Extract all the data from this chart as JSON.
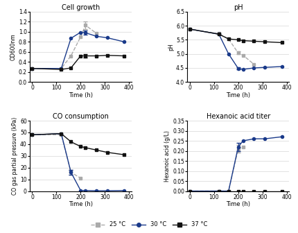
{
  "cell_growth": {
    "title": "Cell growth",
    "xlabel": "Time (h)",
    "ylabel": "OD600nm",
    "ylim": [
      0,
      1.4
    ],
    "yticks": [
      0,
      0.2,
      0.4,
      0.6,
      0.8,
      1.0,
      1.2,
      1.4
    ],
    "series": {
      "25C": {
        "x": [
          0,
          120,
          160,
          200,
          220,
          265,
          310,
          380
        ],
        "y": [
          0.27,
          0.27,
          0.52,
          0.9,
          1.13,
          0.97,
          null,
          null
        ],
        "yerr": [
          null,
          null,
          null,
          null,
          0.08,
          null,
          null,
          null
        ],
        "color": "#aaaaaa",
        "marker": "s",
        "linestyle": "--"
      },
      "30C": {
        "x": [
          0,
          120,
          160,
          200,
          220,
          265,
          310,
          380
        ],
        "y": [
          0.27,
          0.27,
          0.87,
          0.99,
          0.98,
          0.91,
          0.88,
          0.8
        ],
        "yerr": [
          null,
          null,
          null,
          null,
          0.04,
          null,
          null,
          null
        ],
        "color": "#1a3a8a",
        "marker": "o",
        "linestyle": "-"
      },
      "37C": {
        "x": [
          0,
          120,
          160,
          200,
          220,
          265,
          310,
          380
        ],
        "y": [
          0.27,
          0.25,
          0.28,
          0.52,
          0.52,
          0.52,
          0.53,
          0.52
        ],
        "yerr": [
          null,
          null,
          null,
          null,
          0.03,
          null,
          null,
          null
        ],
        "color": "#111111",
        "marker": "s",
        "linestyle": "-"
      }
    }
  },
  "ph": {
    "title": "pH",
    "xlabel": "Time (h)",
    "ylabel": "pH",
    "ylim": [
      4.0,
      6.5
    ],
    "yticks": [
      4.0,
      4.5,
      5.0,
      5.5,
      6.0,
      6.5
    ],
    "series": {
      "25C": {
        "x": [
          0,
          120,
          160,
          200,
          220,
          265,
          310,
          380
        ],
        "y": [
          5.88,
          5.72,
          5.53,
          5.03,
          4.95,
          4.63,
          null,
          null
        ],
        "yerr": [
          null,
          null,
          null,
          0.05,
          null,
          null,
          null,
          null
        ],
        "color": "#aaaaaa",
        "marker": "s",
        "linestyle": "--"
      },
      "30C": {
        "x": [
          0,
          120,
          160,
          200,
          220,
          265,
          310,
          380
        ],
        "y": [
          5.88,
          5.7,
          5.0,
          4.48,
          4.45,
          4.5,
          4.52,
          4.55
        ],
        "yerr": [
          null,
          null,
          null,
          0.04,
          null,
          null,
          null,
          null
        ],
        "color": "#1a3a8a",
        "marker": "o",
        "linestyle": "-"
      },
      "37C": {
        "x": [
          0,
          120,
          160,
          200,
          220,
          265,
          310,
          380
        ],
        "y": [
          5.88,
          5.7,
          5.53,
          5.5,
          5.47,
          5.45,
          5.43,
          5.4
        ],
        "yerr": [
          null,
          null,
          null,
          null,
          null,
          null,
          null,
          null
        ],
        "color": "#111111",
        "marker": "s",
        "linestyle": "-"
      }
    }
  },
  "co_consumption": {
    "title": "CO consumption",
    "xlabel": "Time (h)",
    "ylabel": "CO gas partial pressure (kPa)",
    "ylim": [
      0,
      60
    ],
    "yticks": [
      0,
      10,
      20,
      30,
      40,
      50,
      60
    ],
    "series": {
      "25C": {
        "x": [
          0,
          120,
          160,
          200,
          220,
          265,
          310,
          380
        ],
        "y": [
          48,
          48,
          16,
          11,
          null,
          null,
          null,
          null
        ],
        "yerr": [
          null,
          null,
          2,
          null,
          null,
          null,
          null,
          null
        ],
        "color": "#aaaaaa",
        "marker": "s",
        "linestyle": "--"
      },
      "30C": {
        "x": [
          0,
          120,
          160,
          200,
          220,
          265,
          310,
          380
        ],
        "y": [
          48,
          49,
          16,
          0.5,
          0.5,
          0.3,
          0.3,
          0.5
        ],
        "yerr": [
          null,
          null,
          2,
          null,
          null,
          null,
          null,
          null
        ],
        "color": "#1a3a8a",
        "marker": "o",
        "linestyle": "-"
      },
      "37C": {
        "x": [
          0,
          120,
          160,
          200,
          220,
          265,
          310,
          380
        ],
        "y": [
          48,
          49,
          42,
          38,
          37,
          35,
          33,
          31
        ],
        "yerr": [
          null,
          null,
          null,
          null,
          null,
          null,
          null,
          null
        ],
        "color": "#111111",
        "marker": "s",
        "linestyle": "-"
      }
    }
  },
  "hexanoic_acid": {
    "title": "Hexanoic acid titer",
    "xlabel": "Time (h)",
    "ylabel": "Hexanoic acid (g/L)",
    "ylim": [
      0,
      0.35
    ],
    "yticks": [
      0,
      0.05,
      0.1,
      0.15,
      0.2,
      0.25,
      0.3,
      0.35
    ],
    "series": {
      "25C": {
        "x": [
          0,
          120,
          160,
          200,
          220,
          265,
          310,
          380
        ],
        "y": [
          0,
          0,
          0,
          0.21,
          0.22,
          null,
          null,
          null
        ],
        "yerr": [
          null,
          null,
          null,
          0.02,
          null,
          null,
          null,
          null
        ],
        "color": "#aaaaaa",
        "marker": "s",
        "linestyle": "--"
      },
      "30C": {
        "x": [
          0,
          120,
          160,
          200,
          220,
          265,
          310,
          380
        ],
        "y": [
          0,
          0,
          0,
          0.22,
          0.25,
          0.26,
          0.26,
          0.27
        ],
        "yerr": [
          null,
          null,
          null,
          0.02,
          null,
          null,
          null,
          null
        ],
        "color": "#1a3a8a",
        "marker": "o",
        "linestyle": "-"
      },
      "37C": {
        "x": [
          0,
          120,
          160,
          200,
          220,
          265,
          310,
          380
        ],
        "y": [
          0,
          0,
          0,
          0,
          0,
          0,
          0,
          0
        ],
        "yerr": [
          null,
          null,
          null,
          null,
          null,
          null,
          null,
          null
        ],
        "color": "#111111",
        "marker": "s",
        "linestyle": "-"
      }
    }
  },
  "legend": {
    "labels": [
      "25 °C",
      "30 °C",
      "37 °C"
    ],
    "colors": [
      "#aaaaaa",
      "#1a3a8a",
      "#111111"
    ],
    "markers": [
      "s",
      "o",
      "s"
    ],
    "linestyles": [
      "--",
      "-",
      "-"
    ]
  },
  "background_color": "#ffffff"
}
